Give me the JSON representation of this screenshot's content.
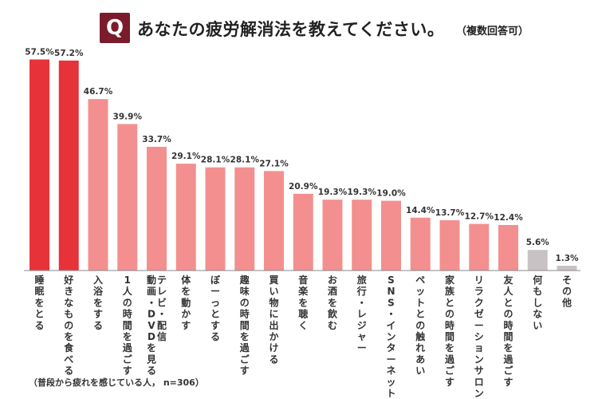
{
  "header": {
    "badge": "Q",
    "title": "あなたの疲労解消法を教えてください。",
    "subtitle": "（複数回答可）"
  },
  "footnote": "（普段から疲れを感じている人， n=306）",
  "colors": {
    "top": "#e8323a",
    "main": "#f48f8f",
    "muted": "#c9c2c5",
    "badge": "#7a1c2b"
  },
  "chart_data": {
    "type": "bar",
    "categories": [
      "睡眠をとる",
      "好きなものを食べる",
      "入浴をする",
      "1人の時間を過ごす",
      "テレビ・配信動画・DVDを見る",
      "体を動かす",
      "ぼーっとする",
      "趣味の時間を過ごす",
      "買い物に出かける",
      "音楽を聴く",
      "お酒を飲む",
      "旅行・レジャー",
      "SNS・インターネット",
      "ペットとの触れあい",
      "家族との時間を過ごす",
      "リラクゼーションサロン",
      "友人との時間を過ごす",
      "何もしない",
      "その他"
    ],
    "values": [
      57.5,
      57.2,
      46.7,
      39.9,
      33.7,
      29.1,
      28.1,
      28.1,
      27.1,
      20.9,
      19.3,
      19.3,
      19.0,
      14.4,
      13.7,
      12.7,
      12.4,
      5.6,
      1.3
    ],
    "value_labels": [
      "57.5%",
      "57.2%",
      "46.7%",
      "39.9%",
      "33.7%",
      "29.1%",
      "28.1%",
      "28.1%",
      "27.1%",
      "20.9%",
      "19.3%",
      "19.3%",
      "19.0%",
      "14.4%",
      "13.7%",
      "12.7%",
      "12.4%",
      "5.6%",
      "1.3%"
    ],
    "label_lines": [
      [
        "睡眠をとる"
      ],
      [
        "好きなものを食べる"
      ],
      [
        "入浴をする"
      ],
      [
        "1人の時間を過ごす"
      ],
      [
        "テレビ・配信",
        "動画・DVDを見る"
      ],
      [
        "体を動かす"
      ],
      [
        "ぼーっとする"
      ],
      [
        "趣味の時間を過ごす"
      ],
      [
        "買い物に出かける"
      ],
      [
        "音楽を聴く"
      ],
      [
        "お酒を飲む"
      ],
      [
        "旅行・レジャー"
      ],
      [
        "SNS・インターネット"
      ],
      [
        "ペットとの触れあい"
      ],
      [
        "家族との時間を過ごす"
      ],
      [
        "リラクゼーションサロン"
      ],
      [
        "友人との時間を過ごす"
      ],
      [
        "何もしない"
      ],
      [
        "その他"
      ]
    ],
    "color_groups": [
      "top",
      "top",
      "main",
      "main",
      "main",
      "main",
      "main",
      "main",
      "main",
      "main",
      "main",
      "main",
      "main",
      "main",
      "main",
      "main",
      "main",
      "muted",
      "muted"
    ],
    "ylim": [
      0,
      60
    ],
    "grid": false,
    "legend": "none"
  }
}
